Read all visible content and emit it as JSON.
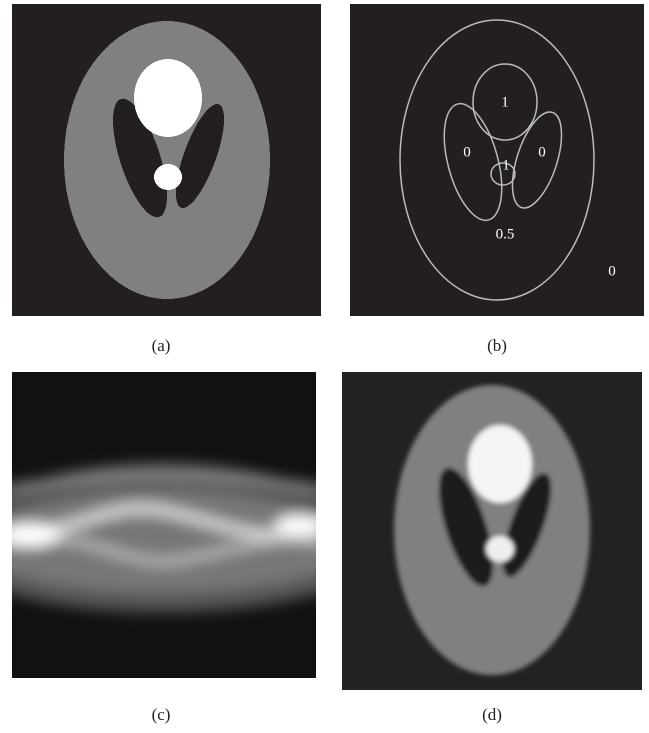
{
  "panels": [
    {
      "caption": "(a)"
    },
    {
      "caption": "(b)",
      "labels": [
        "1",
        "0",
        "0",
        "1",
        "0.5",
        "0"
      ]
    },
    {
      "caption": "(c)"
    },
    {
      "caption": "(d)"
    }
  ]
}
